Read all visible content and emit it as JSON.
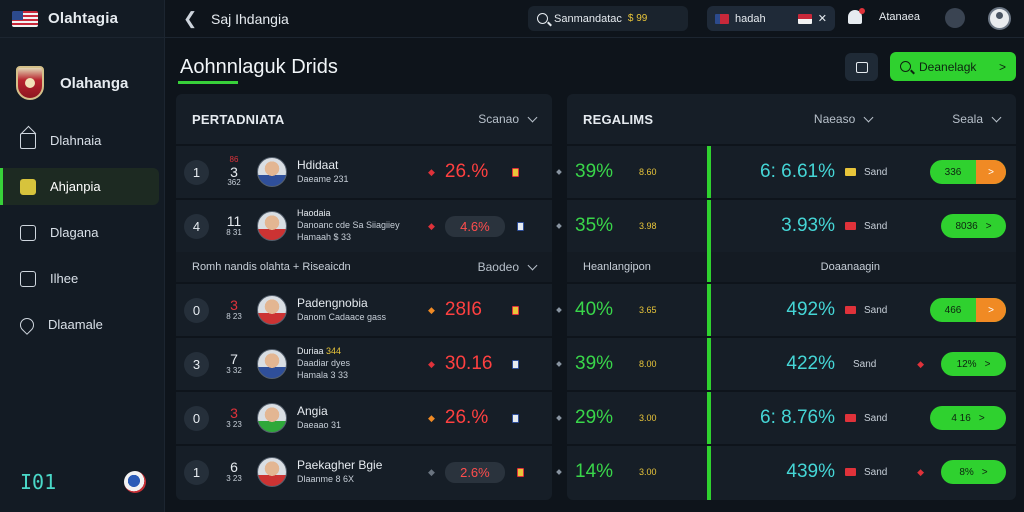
{
  "sidebar": {
    "app_name": "Olahtagia",
    "brand_name": "Olahanga",
    "items": [
      {
        "label": "Dlahnaia",
        "icon": "home-icon"
      },
      {
        "label": "Ahjanpia",
        "icon": "badge-icon",
        "active": true
      },
      {
        "label": "Dlagana",
        "icon": "square-icon"
      },
      {
        "label": "Ilhee",
        "icon": "edit-icon"
      },
      {
        "label": "Dlaamale",
        "icon": "location-pin-icon"
      }
    ],
    "footer_number": "I01"
  },
  "topbar": {
    "title": "Saj Ihdangia",
    "search_text": "Sanmandatac",
    "search_extra": "$ 99",
    "lang_label": "hadah",
    "user_name": "Atanaea"
  },
  "page": {
    "title": "Aohnnlaguk Drids",
    "cta_label": "Deanelagk",
    "accent": "#2fd12f"
  },
  "left_panel": {
    "title": "PERTADNIATA",
    "sort_label": "Scanao",
    "section_label": "Romh nandis olahta  +  Riseaicdn",
    "section_sort": "Baodeo",
    "rows": [
      {
        "rank": "1",
        "tag": "86",
        "num": "3",
        "sub": "362",
        "name": "Hdidaat",
        "desc": "Daeame 231",
        "note": "",
        "pct": "26.%"
      },
      {
        "rank": "4",
        "tag": "",
        "num": "11",
        "sub": "8 31",
        "name": "Haodaia",
        "desc": "Danoanc cde Sa Siiagiiey",
        "note": "Hamaah $ 33",
        "pct": "4.6%"
      },
      {
        "rank": "0",
        "tag": "",
        "num": "3",
        "sub": "8 23",
        "name": "Padengnobia",
        "desc": "Danom Cadaace gass",
        "note": "",
        "pct": "28I6"
      },
      {
        "rank": "3",
        "tag": "",
        "num": "7",
        "sub": "3 32",
        "name": "Duriaa",
        "gold": "344",
        "desc": "Daadiar dyes",
        "note": "Hamala 3 33",
        "pct": "30.16"
      },
      {
        "rank": "0",
        "tag": "",
        "num": "3",
        "sub": "3 23",
        "name": "Angia",
        "desc": "Daeaao 31",
        "note": "",
        "pct": "26.%"
      },
      {
        "rank": "1",
        "tag": "",
        "num": "6",
        "sub": "3 23",
        "name": "Paekagher Bgie",
        "desc": "Dlaanme 8 6X",
        "note": "",
        "pct": "2.6%"
      }
    ]
  },
  "right_panel": {
    "title": "REGALIMS",
    "sort_label": "Naeaso",
    "sort2_label": "Seala",
    "section_label": "Heanlangipon",
    "section_right": "Doaanaagin",
    "rows": [
      {
        "gpct": "39%",
        "gsmall": "8.60",
        "cpct": "6: 6.61%",
        "label": "Sand",
        "btn": "336"
      },
      {
        "gpct": "35%",
        "gsmall": "3.98",
        "cpct": "3.93%",
        "label": "Sand",
        "btn": "8036"
      },
      {
        "gpct": "40%",
        "gsmall": "3.65",
        "cpct": "492%",
        "label": "Sand",
        "btn": "466"
      },
      {
        "gpct": "39%",
        "gsmall": "8.00",
        "cpct": "422%",
        "label": "Sand",
        "btn": "12%"
      },
      {
        "gpct": "29%",
        "gsmall": "3.00",
        "cpct": "6: 8.76%",
        "label": "Sand",
        "btn": "4 16"
      },
      {
        "gpct": "14%",
        "gsmall": "3.00",
        "cpct": "439%",
        "label": "Sand",
        "btn": "8%"
      }
    ]
  }
}
